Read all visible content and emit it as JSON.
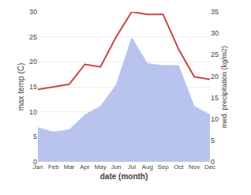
{
  "chart_data": {
    "type": "line",
    "xlabel": "date (month)",
    "ylabel": "max temp (C)",
    "y2label": "med. precipitation (kg/m2)",
    "categories": [
      "Jan",
      "Feb",
      "Mar",
      "Apr",
      "May",
      "Jun",
      "Jul",
      "Aug",
      "Sep",
      "Oct",
      "Nov",
      "Dec"
    ],
    "series": [
      {
        "type": "area",
        "axis": "y2",
        "color": "#b8c4ee",
        "values": [
          8.0,
          7.0,
          7.5,
          11.0,
          13.0,
          18.0,
          29.0,
          23.0,
          22.5,
          22.5,
          13.0,
          11.0
        ]
      },
      {
        "type": "line",
        "axis": "y",
        "color": "#cc4444",
        "values": [
          14.5,
          15.0,
          15.5,
          19.5,
          19.0,
          25.0,
          30.0,
          29.5,
          29.5,
          22.5,
          17.0,
          16.5
        ]
      }
    ],
    "ylim": [
      0,
      30
    ],
    "yticks": [
      0,
      5,
      10,
      15,
      20,
      25,
      30
    ],
    "y2lim": [
      0,
      35
    ],
    "y2ticks": [
      0,
      5,
      10,
      15,
      20,
      25,
      30,
      35
    ],
    "grid": true
  }
}
